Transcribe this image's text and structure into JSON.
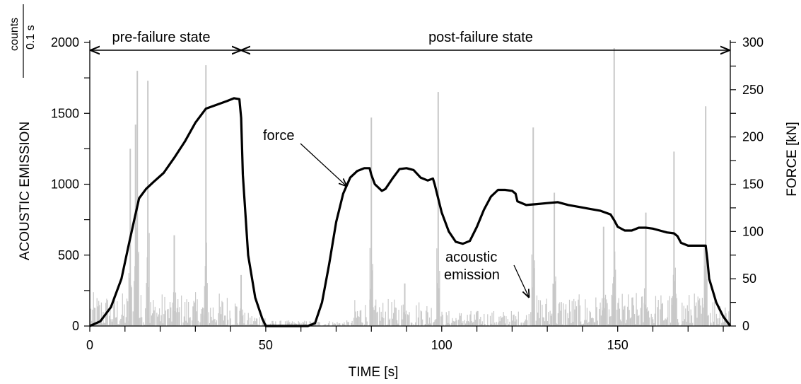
{
  "chart_data": {
    "type": "line",
    "xlabel": "TIME   [s]",
    "ylabel_left": "ACOUSTIC EMISSION",
    "ylabel_right": "FORCE   [kN]",
    "left_unit": {
      "numerator": "counts",
      "denominator": "0.1 s"
    },
    "xlim": [
      0,
      182
    ],
    "ylim_left": [
      0,
      2000
    ],
    "ylim_right": [
      0,
      300
    ],
    "x_ticks": [
      0,
      50,
      100,
      150
    ],
    "y_left_ticks": [
      0,
      500,
      1000,
      1500,
      2000
    ],
    "y_right_ticks": [
      0,
      50,
      100,
      150,
      200,
      250,
      300
    ],
    "grid": false,
    "annotations": {
      "pre_failure": {
        "text": "pre-failure state",
        "x_range": [
          0,
          43
        ]
      },
      "post_failure": {
        "text": "post-failure state",
        "x_range": [
          43,
          182
        ]
      },
      "force_label": "force",
      "ae_label_line1": "acoustic",
      "ae_label_line2": "emission"
    },
    "series": [
      {
        "name": "force",
        "axis": "right",
        "color": "#000000",
        "x": [
          0,
          3,
          6,
          9,
          11,
          12.5,
          14,
          16,
          18,
          21,
          24,
          27,
          30,
          33,
          36,
          39,
          41,
          42.5,
          43,
          43.5,
          45,
          47,
          49,
          50,
          55,
          62,
          64,
          66,
          68,
          70,
          72,
          74,
          76,
          78,
          79.5,
          80,
          81,
          83,
          84,
          86,
          88,
          90,
          92,
          94,
          96,
          97.5,
          98,
          100,
          102,
          104,
          106,
          108,
          110,
          112,
          114,
          116,
          118,
          120,
          121,
          121.5,
          124,
          127,
          130,
          133,
          136,
          139,
          142,
          145,
          148,
          149,
          150,
          152,
          154,
          156,
          158,
          160,
          162,
          164,
          166,
          167,
          168,
          170,
          172,
          174,
          175,
          175.5,
          176,
          178,
          180,
          182
        ],
        "y": [
          0,
          5,
          20,
          50,
          85,
          110,
          135,
          145,
          152,
          162,
          178,
          195,
          215,
          230,
          234,
          238,
          241,
          240,
          220,
          160,
          75,
          30,
          8,
          0,
          0,
          0,
          3,
          25,
          65,
          110,
          140,
          157,
          164,
          167,
          167,
          160,
          150,
          143,
          145,
          156,
          166,
          167,
          165,
          157,
          154,
          156,
          150,
          120,
          100,
          89,
          87,
          90,
          105,
          123,
          137,
          144,
          144,
          143,
          140,
          132,
          128,
          129,
          130,
          131,
          128,
          126,
          124,
          122,
          118,
          112,
          105,
          101,
          101,
          104,
          104,
          103,
          101,
          99,
          98,
          95,
          88,
          85,
          85,
          85,
          85,
          70,
          50,
          25,
          10,
          0
        ]
      },
      {
        "name": "acoustic emission",
        "axis": "left",
        "color": "#c8c8c8",
        "bar_width_s": 0.1,
        "background_noise": [
          {
            "x_range": [
              0,
              42
            ],
            "level": 150
          },
          {
            "x_range": [
              42,
              50
            ],
            "level": 60
          },
          {
            "x_range": [
              50,
              75
            ],
            "level": 25
          },
          {
            "x_range": [
              75,
              100
            ],
            "level": 120
          },
          {
            "x_range": [
              100,
              125
            ],
            "level": 70
          },
          {
            "x_range": [
              125,
              150
            ],
            "level": 140
          },
          {
            "x_range": [
              150,
              182
            ],
            "level": 150
          }
        ],
        "peaks": [
          {
            "x": 11.5,
            "y": 1250
          },
          {
            "x": 13,
            "y": 1420
          },
          {
            "x": 13.5,
            "y": 1800
          },
          {
            "x": 16.5,
            "y": 1730
          },
          {
            "x": 24,
            "y": 640
          },
          {
            "x": 33,
            "y": 1840
          },
          {
            "x": 43,
            "y": 360
          },
          {
            "x": 80,
            "y": 1470
          },
          {
            "x": 89.5,
            "y": 300
          },
          {
            "x": 99,
            "y": 1650
          },
          {
            "x": 126,
            "y": 1400
          },
          {
            "x": 132,
            "y": 940
          },
          {
            "x": 146,
            "y": 700
          },
          {
            "x": 149,
            "y": 1960
          },
          {
            "x": 158,
            "y": 800
          },
          {
            "x": 166,
            "y": 1230
          },
          {
            "x": 175,
            "y": 1550
          }
        ]
      }
    ]
  }
}
